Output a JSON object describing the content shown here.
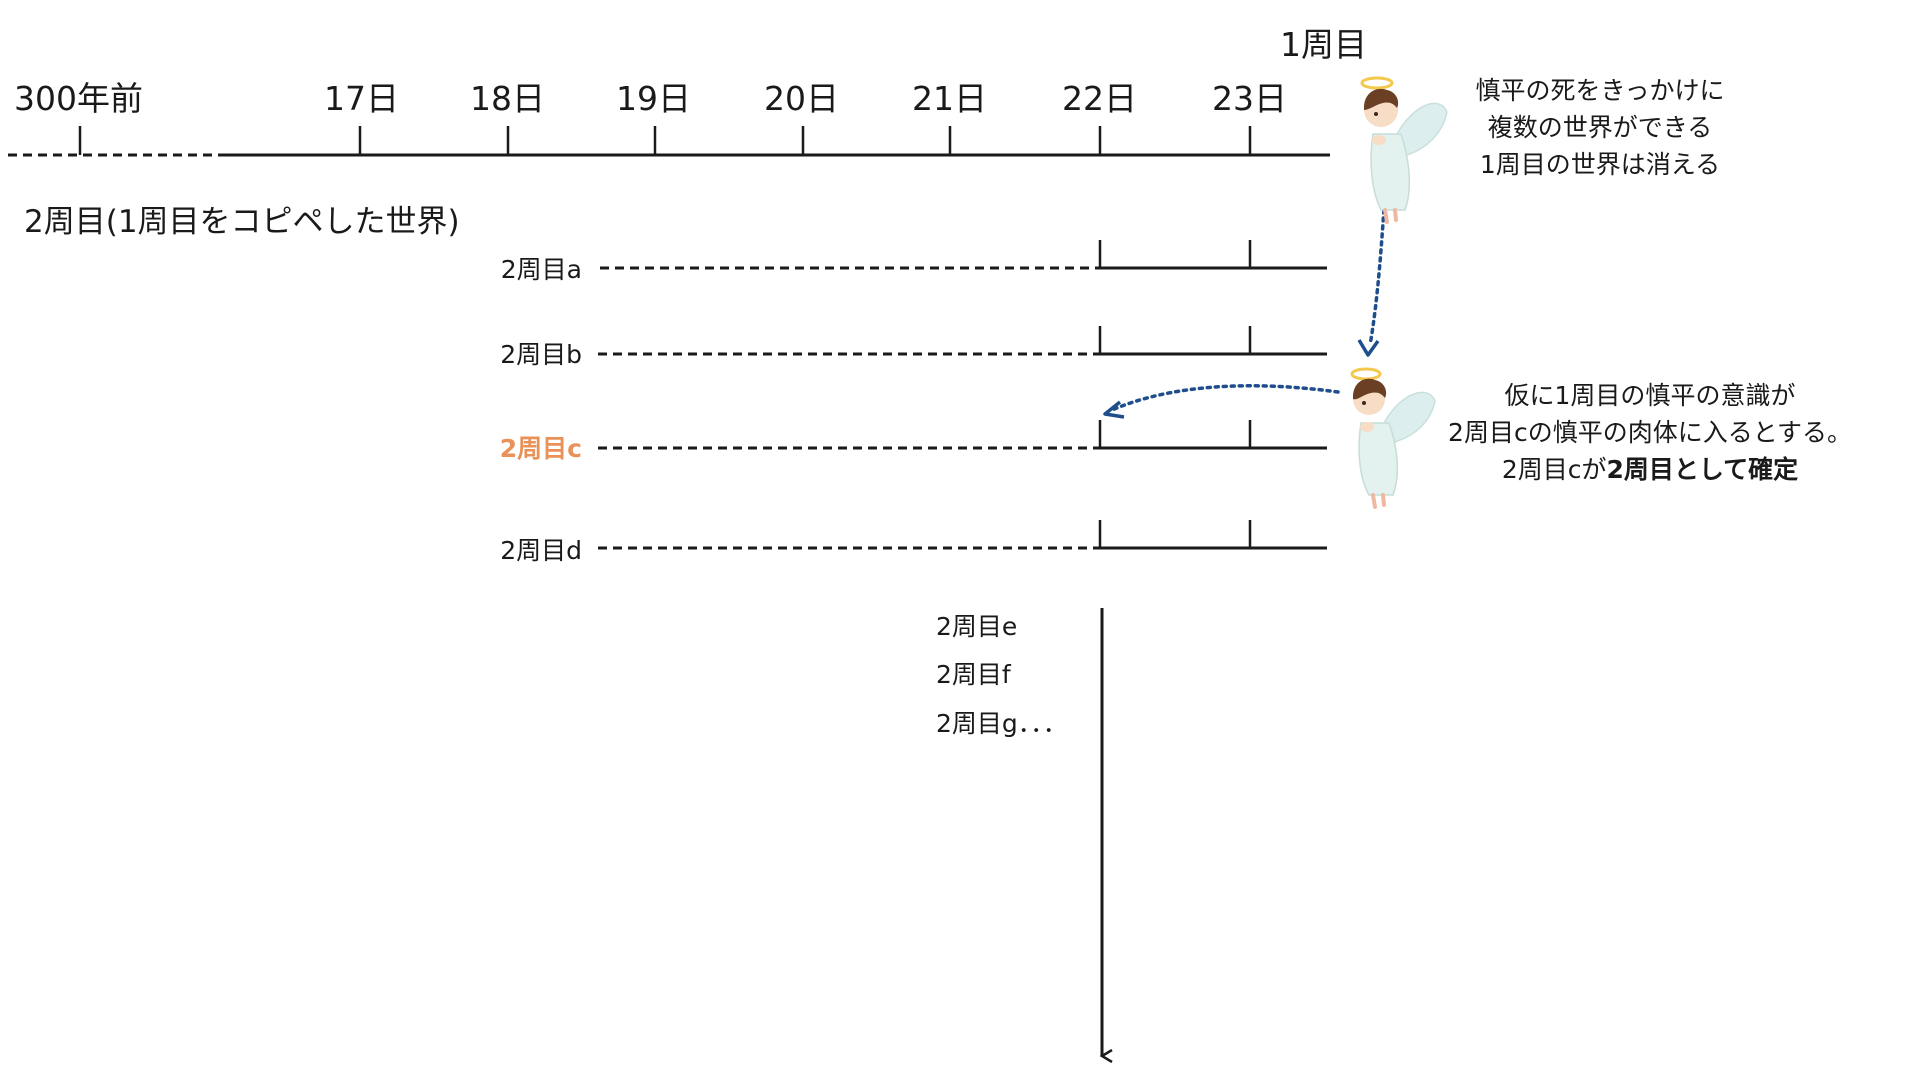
{
  "timeline": {
    "labels": [
      "300年前",
      "17日",
      "18日",
      "19日",
      "20日",
      "21日",
      "22日",
      "23日"
    ],
    "lap1_label": "1周目"
  },
  "lap2": {
    "heading": "2周目(1周目をコピペした世界)",
    "branches": [
      "2周目a",
      "2周目b",
      "2周目c",
      "2周目d"
    ],
    "highlight_color": "#e8925a",
    "more": [
      "2周目e",
      "2周目f",
      "2周目g．．．"
    ]
  },
  "notes": {
    "top": [
      "慎平の死をきっかけに",
      "複数の世界ができる",
      "1周目の世界は消える"
    ],
    "bottom": {
      "line1": "仮に1周目の慎平の意識が",
      "line2": "2周目cの慎平の肉体に入るとする。",
      "line3_prefix": "2周目cが",
      "line3_bold": "2周目として確定"
    }
  },
  "colors": {
    "line": "#1a1a1a",
    "arrow_dotted": "#1f4e8c",
    "angel_robe": "#e3f2ee",
    "angel_wing": "#dceeed",
    "angel_hair": "#6b3f24",
    "halo": "#f2c94c"
  },
  "icons": [
    "angel-icon"
  ]
}
